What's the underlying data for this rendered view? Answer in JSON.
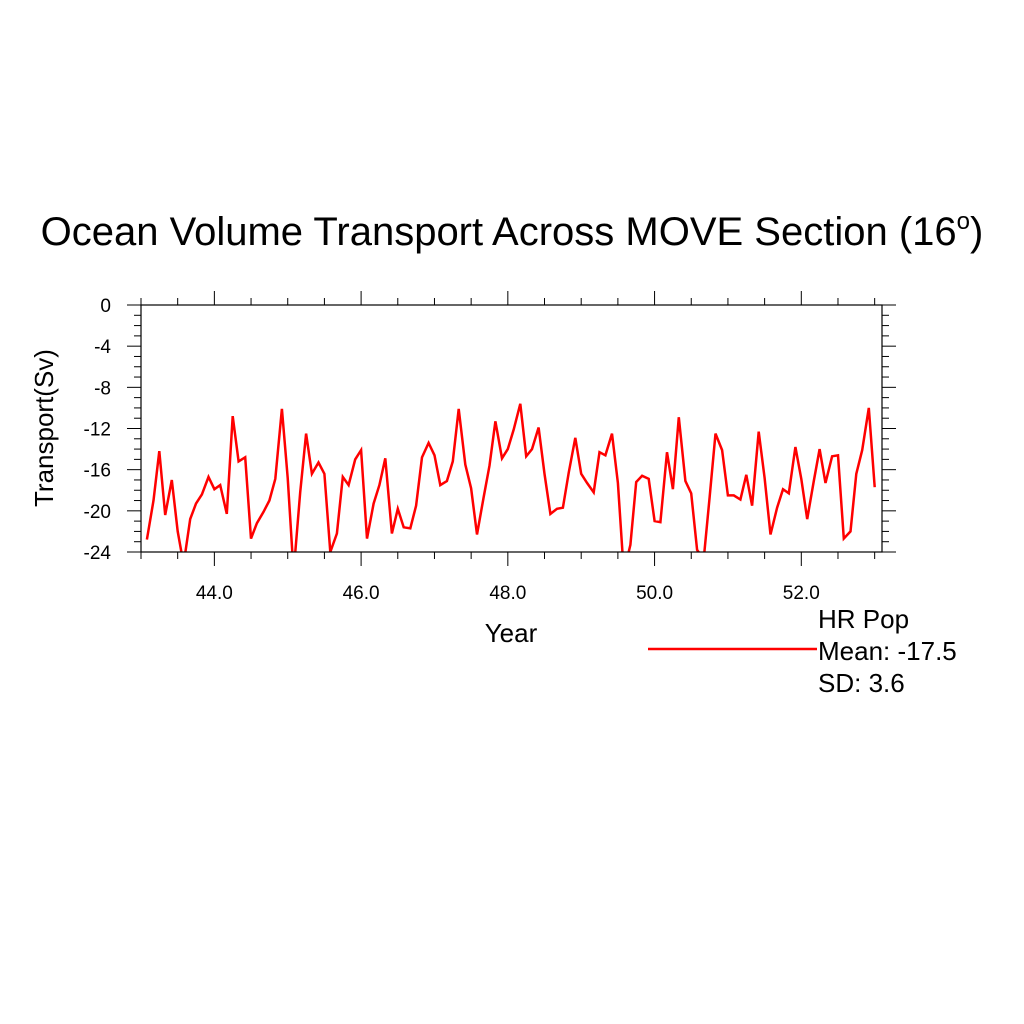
{
  "chart_data": {
    "type": "line",
    "title": "Ocean Volume Transport Across MOVE Section (16",
    "title_superscript": "o",
    "title_suffix": ")",
    "xlabel": "Year",
    "ylabel": "Transport(Sv)",
    "xlim": [
      43.0,
      53.1
    ],
    "ylim": [
      -24,
      0
    ],
    "x_tick_labels": [
      "44.0",
      "46.0",
      "48.0",
      "50.0",
      "52.0"
    ],
    "x_ticks": [
      44,
      46,
      48,
      50,
      52
    ],
    "y_tick_labels": [
      "0",
      "-4",
      "-8",
      "-12",
      "-16",
      "-20",
      "-24"
    ],
    "y_ticks": [
      0,
      -4,
      -8,
      -12,
      -16,
      -20,
      -24
    ],
    "grid": false,
    "legend_position": "bottom-right",
    "series": [
      {
        "name": "HR Pop",
        "color": "#ff0000",
        "x": [
          43.08,
          43.17,
          43.25,
          43.33,
          43.42,
          43.5,
          43.58,
          43.67,
          43.75,
          43.83,
          43.92,
          44.0,
          44.08,
          44.17,
          44.25,
          44.33,
          44.42,
          44.5,
          44.58,
          44.67,
          44.75,
          44.83,
          44.92,
          45.0,
          45.08,
          45.17,
          45.25,
          45.33,
          45.42,
          45.5,
          45.58,
          45.67,
          45.75,
          45.83,
          45.92,
          46.0,
          46.08,
          46.17,
          46.25,
          46.33,
          46.42,
          46.5,
          46.58,
          46.67,
          46.75,
          46.83,
          46.92,
          47.0,
          47.08,
          47.17,
          47.25,
          47.33,
          47.42,
          47.5,
          47.58,
          47.67,
          47.75,
          47.83,
          47.92,
          48.0,
          48.08,
          48.17,
          48.25,
          48.33,
          48.42,
          48.5,
          48.58,
          48.67,
          48.75,
          48.83,
          48.92,
          49.0,
          49.08,
          49.17,
          49.25,
          49.33,
          49.42,
          49.5,
          49.58,
          49.67,
          49.75,
          49.83,
          49.92,
          50.0,
          50.08,
          50.17,
          50.25,
          50.33,
          50.42,
          50.5,
          50.58,
          50.67,
          50.75,
          50.83,
          50.92,
          51.0,
          51.08,
          51.17,
          51.25,
          51.33,
          51.42,
          51.5,
          51.58,
          51.67,
          51.75,
          51.83,
          51.92,
          52.0,
          52.08,
          52.17,
          52.25,
          52.33,
          52.42,
          52.5,
          52.58,
          52.67,
          52.75,
          52.83,
          52.92,
          53.0
        ],
        "values": [
          -22.8,
          -19.0,
          -14.2,
          -20.4,
          -17.0,
          -22.0,
          -25.2,
          -20.8,
          -19.3,
          -18.4,
          -16.7,
          -17.9,
          -17.5,
          -20.3,
          -10.8,
          -15.2,
          -14.8,
          -22.7,
          -21.2,
          -20.1,
          -19.0,
          -16.9,
          -10.1,
          -16.8,
          -26.0,
          -18.2,
          -12.5,
          -16.4,
          -15.3,
          -16.4,
          -24.0,
          -22.2,
          -16.7,
          -17.5,
          -15.0,
          -14.1,
          -22.7,
          -19.3,
          -17.5,
          -14.9,
          -22.2,
          -19.8,
          -21.6,
          -21.7,
          -19.5,
          -14.8,
          -13.4,
          -14.6,
          -17.5,
          -17.1,
          -15.2,
          -10.1,
          -15.5,
          -17.8,
          -22.3,
          -18.7,
          -15.6,
          -11.3,
          -14.9,
          -14.0,
          -12.1,
          -9.6,
          -14.7,
          -14.0,
          -11.9,
          -16.4,
          -20.3,
          -19.8,
          -19.7,
          -16.3,
          -12.9,
          -16.4,
          -17.3,
          -18.2,
          -14.3,
          -14.6,
          -12.5,
          -17.3,
          -26.0,
          -23.3,
          -17.2,
          -16.6,
          -16.9,
          -21.0,
          -21.1,
          -14.3,
          -17.9,
          -10.9,
          -17.1,
          -18.3,
          -23.8,
          -24.7,
          -18.7,
          -12.5,
          -14.1,
          -18.5,
          -18.5,
          -18.9,
          -16.5,
          -19.5,
          -12.3,
          -16.8,
          -22.3,
          -19.7,
          -17.9,
          -18.3,
          -13.8,
          -16.9,
          -20.8,
          -17.1,
          -14.0,
          -17.3,
          -14.7,
          -14.6,
          -22.7,
          -22.0,
          -16.4,
          -14.1,
          -10.0,
          -17.7
        ]
      }
    ],
    "legend": {
      "name": "HR Pop",
      "mean_label": "Mean: -17.5",
      "sd_label": "SD: 3.6"
    }
  }
}
